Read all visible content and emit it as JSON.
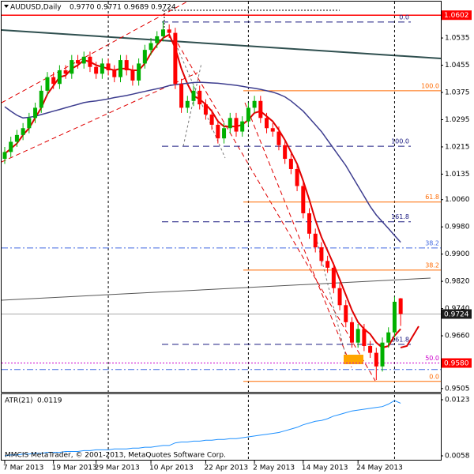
{
  "chart_data": [
    {
      "type": "candlestick",
      "title": "AUDUSD,Daily",
      "ohlc_label": "0.9770 0.9771 0.9689 0.9724",
      "categories": [
        "7 Mar 2013",
        null,
        null,
        null,
        null,
        null,
        null,
        null,
        "19 Mar 2013",
        null,
        null,
        null,
        null,
        null,
        null,
        "29 Mar 2013",
        null,
        null,
        null,
        null,
        null,
        null,
        null,
        null,
        "10 Apr 2013",
        null,
        null,
        null,
        null,
        null,
        null,
        null,
        null,
        "22 Apr 2013",
        null,
        null,
        null,
        null,
        null,
        null,
        null,
        "2 May 2013",
        null,
        null,
        null,
        null,
        null,
        null,
        null,
        "14 May 2013",
        null,
        null,
        null,
        null,
        null,
        null,
        null,
        null,
        "24 May 2013",
        null,
        null,
        null,
        null,
        null,
        null,
        null
      ],
      "open": [
        1.018,
        1.02,
        1.023,
        1.025,
        1.027,
        1.03,
        1.033,
        1.038,
        1.042,
        1.04,
        1.044,
        1.043,
        1.047,
        1.046,
        1.048,
        1.045,
        1.043,
        1.046,
        1.044,
        1.042,
        1.047,
        1.044,
        1.041,
        1.046,
        1.05,
        1.052,
        1.054,
        1.056,
        1.055,
        1.04,
        1.033,
        1.035,
        1.038,
        1.034,
        1.031,
        1.028,
        1.024,
        1.027,
        1.03,
        1.026,
        1.029,
        1.033,
        1.035,
        1.03,
        1.027,
        1.026,
        1.022,
        1.018,
        1.015,
        1.01,
        1.002,
        0.996,
        0.992,
        0.988,
        0.986,
        0.98,
        0.975,
        0.97,
        0.964,
        0.968,
        0.963,
        0.961,
        0.957,
        0.964,
        0.967,
        0.977
      ],
      "high": [
        1.0215,
        1.0245,
        1.0265,
        1.0285,
        1.0315,
        1.0345,
        1.0395,
        1.0435,
        1.0435,
        1.0455,
        1.0455,
        1.0485,
        1.0485,
        1.0495,
        1.0495,
        1.0465,
        1.0475,
        1.0475,
        1.0455,
        1.0485,
        1.0485,
        1.0455,
        1.0475,
        1.0515,
        1.0535,
        1.0555,
        1.0585,
        1.0575,
        1.0565,
        1.0415,
        1.0365,
        1.0395,
        1.0395,
        1.0355,
        1.0325,
        1.0295,
        1.0285,
        1.0315,
        1.0315,
        1.0305,
        1.0345,
        1.0365,
        1.0365,
        1.0315,
        1.0285,
        1.0275,
        1.0235,
        1.0195,
        1.0165,
        1.0115,
        1.0035,
        0.9975,
        0.9935,
        0.9895,
        0.9875,
        0.9815,
        0.9765,
        0.9715,
        0.9695,
        0.9695,
        0.9645,
        0.9625,
        0.9655,
        0.9685,
        0.9775,
        0.9771
      ],
      "low": [
        1.0165,
        1.0185,
        1.0215,
        1.0235,
        1.0255,
        1.0285,
        1.0315,
        1.0365,
        1.0385,
        1.0385,
        1.0415,
        1.0415,
        1.0445,
        1.0445,
        1.0435,
        1.0415,
        1.0415,
        1.0425,
        1.0405,
        1.0405,
        1.0425,
        1.0395,
        1.0395,
        1.0445,
        1.0485,
        1.0505,
        1.0525,
        1.0535,
        1.0385,
        1.0315,
        1.0315,
        1.0335,
        1.0325,
        1.0295,
        1.0265,
        1.0225,
        1.0225,
        1.0255,
        1.0245,
        1.0245,
        1.0275,
        1.0315,
        1.0285,
        1.0255,
        1.0245,
        1.0205,
        1.0165,
        1.0135,
        1.0085,
        1.0005,
        0.9945,
        0.9905,
        0.9865,
        0.9845,
        0.9785,
        0.9735,
        0.9685,
        0.9625,
        0.9625,
        0.9615,
        0.9595,
        0.953,
        0.9555,
        0.9625,
        0.9655,
        0.9689
      ],
      "close": [
        1.02,
        1.023,
        1.025,
        1.027,
        1.03,
        1.033,
        1.038,
        1.042,
        1.04,
        1.044,
        1.043,
        1.047,
        1.046,
        1.048,
        1.045,
        1.043,
        1.046,
        1.044,
        1.042,
        1.047,
        1.044,
        1.041,
        1.046,
        1.05,
        1.052,
        1.054,
        1.056,
        1.055,
        1.04,
        1.033,
        1.035,
        1.038,
        1.034,
        1.031,
        1.028,
        1.024,
        1.027,
        1.03,
        1.026,
        1.029,
        1.033,
        1.035,
        1.03,
        1.027,
        1.026,
        1.022,
        1.018,
        1.015,
        1.01,
        1.002,
        0.996,
        0.992,
        0.988,
        0.986,
        0.98,
        0.975,
        0.97,
        0.964,
        0.968,
        0.963,
        0.961,
        0.957,
        0.964,
        0.967,
        0.976,
        0.9724
      ],
      "up_color": "#00b000",
      "down_color": "#ff0000",
      "overlays": [
        {
          "color": "#e00000",
          "values": [
            1.0195,
            1.021,
            1.0225,
            1.025,
            1.027,
            1.03,
            1.033,
            1.037,
            1.0395,
            1.042,
            1.0425,
            1.0445,
            1.0455,
            1.047,
            1.0465,
            1.0455,
            1.045,
            1.0445,
            1.044,
            1.0445,
            1.0445,
            1.044,
            1.044,
            1.046,
            1.049,
            1.0515,
            1.0535,
            1.0545,
            1.0505,
            1.0445,
            1.04,
            1.0365,
            1.0355,
            1.034,
            1.032,
            1.029,
            1.0275,
            1.0275,
            1.0275,
            1.028,
            1.0295,
            1.0315,
            1.032,
            1.0305,
            1.029,
            1.0265,
            1.0235,
            1.02,
            1.0165,
            1.0115,
            1.006,
            1.0,
            0.995,
            0.991,
            0.987,
            0.9825,
            0.978,
            0.9735,
            0.97,
            0.968,
            0.9665,
            0.964,
            0.9625,
            0.963,
            0.966,
            0.968
          ]
        },
        {
          "color": "#3d3d8f",
          "values": [
            1.0333,
            1.032,
            1.0308,
            1.03,
            1.0302,
            1.0305,
            1.031,
            1.0315,
            1.032,
            1.0325,
            1.033,
            1.0335,
            1.034,
            1.0345,
            1.0348,
            1.035,
            1.0353,
            1.0356,
            1.036,
            1.0363,
            1.0366,
            1.037,
            1.0374,
            1.0378,
            1.0382,
            1.0386,
            1.039,
            1.0395,
            1.0398,
            1.04,
            1.0402,
            1.0404,
            1.0405,
            1.0404,
            1.0403,
            1.0402,
            1.04,
            1.0398,
            1.0396,
            1.0393,
            1.039,
            1.0387,
            1.0384,
            1.038,
            1.0376,
            1.037,
            1.0362,
            1.035,
            1.0335,
            1.032,
            1.03,
            1.028,
            1.026,
            1.0235,
            1.021,
            1.0185,
            1.016,
            1.013,
            1.01,
            1.007,
            1.004,
            1.0015,
            0.9995,
            0.9975,
            0.9955,
            0.9935
          ]
        }
      ],
      "levels": [
        {
          "price": 1.0602,
          "color": "#ff0000",
          "style": "solid"
        },
        {
          "price": 1.0582,
          "label": "0.0",
          "color": "#1a1a80",
          "style": "dashed"
        },
        {
          "price": 1.038,
          "label": "100.0",
          "color": "#ff6a00",
          "style": "solid"
        },
        {
          "price": 1.0217,
          "label": "100.0",
          "color": "#1a1a80",
          "style": "dashed"
        },
        {
          "price": 1.0053,
          "label": "61.8",
          "color": "#ff6a00",
          "style": "solid"
        },
        {
          "price": 0.9995,
          "label": "161.8",
          "color": "#1a1a80",
          "style": "dashed"
        },
        {
          "price": 0.9918,
          "label": "38.2",
          "color": "#4169e1",
          "style": "dashdot"
        },
        {
          "price": 0.9853,
          "label": "38.2",
          "color": "#ff6a00",
          "style": "solid"
        },
        {
          "price": 0.9635,
          "label": "161.8",
          "color": "#1a1a80",
          "style": "dashed"
        },
        {
          "price": 0.958,
          "label": "50.0",
          "color": "#cc00cc",
          "style": "dotted"
        },
        {
          "price": 0.9561,
          "color": "#4169e1",
          "style": "dashdot"
        },
        {
          "price": 0.9526,
          "label": "0.0",
          "color": "#ff6a00",
          "style": "solid"
        }
      ],
      "price_tags": [
        {
          "value": 1.0602,
          "label": "1.0602",
          "color": "#ff0000"
        },
        {
          "value": 0.958,
          "label": "0.9580",
          "color": "#ff0000"
        }
      ],
      "ylim": [
        0.9493,
        1.0635
      ],
      "yticks": [
        1.0535,
        1.0455,
        1.0375,
        1.0295,
        1.0215,
        1.0135,
        {
          "value": 1.006,
          "label": "1.0060"
        },
        {
          "value": 0.998,
          "label": "0.9980"
        },
        {
          "value": 0.99,
          "label": "0.9900"
        },
        {
          "value": 0.982,
          "label": "0.9820"
        },
        {
          "value": 0.974,
          "label": "0.9740"
        },
        {
          "value": 0.966,
          "label": "0.9660"
        },
        0.9505
      ]
    },
    {
      "type": "line",
      "title": "ATR(21)",
      "footer": "MMCIS MetaTrader, © 2001-2013, MetaQuotes Software Corp.",
      "series": [
        {
          "color": "#1e90ff",
          "values": [
            0.0058,
            0.0059,
            0.0059,
            0.006,
            0.006,
            0.0061,
            0.0061,
            0.0062,
            0.0062,
            0.0062,
            0.0063,
            0.0063,
            0.0063,
            0.0064,
            0.0064,
            0.0065,
            0.0065,
            0.0065,
            0.0066,
            0.0066,
            0.0066,
            0.0067,
            0.0067,
            0.0068,
            0.0068,
            0.0069,
            0.007,
            0.007,
            0.0073,
            0.0074,
            0.0074,
            0.0075,
            0.0075,
            0.0076,
            0.0076,
            0.0077,
            0.0077,
            0.0078,
            0.0078,
            0.0079,
            0.008,
            0.0081,
            0.0082,
            0.0083,
            0.0084,
            0.0085,
            0.0087,
            0.0089,
            0.0091,
            0.0094,
            0.0096,
            0.0098,
            0.0099,
            0.0101,
            0.0104,
            0.0106,
            0.0108,
            0.011,
            0.0111,
            0.0112,
            0.0113,
            0.0114,
            0.0115,
            0.0118,
            0.0122,
            0.0119
          ]
        }
      ],
      "ylim": [
        0.00461,
        0.01294
      ],
      "yticks": [
        0.0123,
        0.0058
      ]
    }
  ]
}
